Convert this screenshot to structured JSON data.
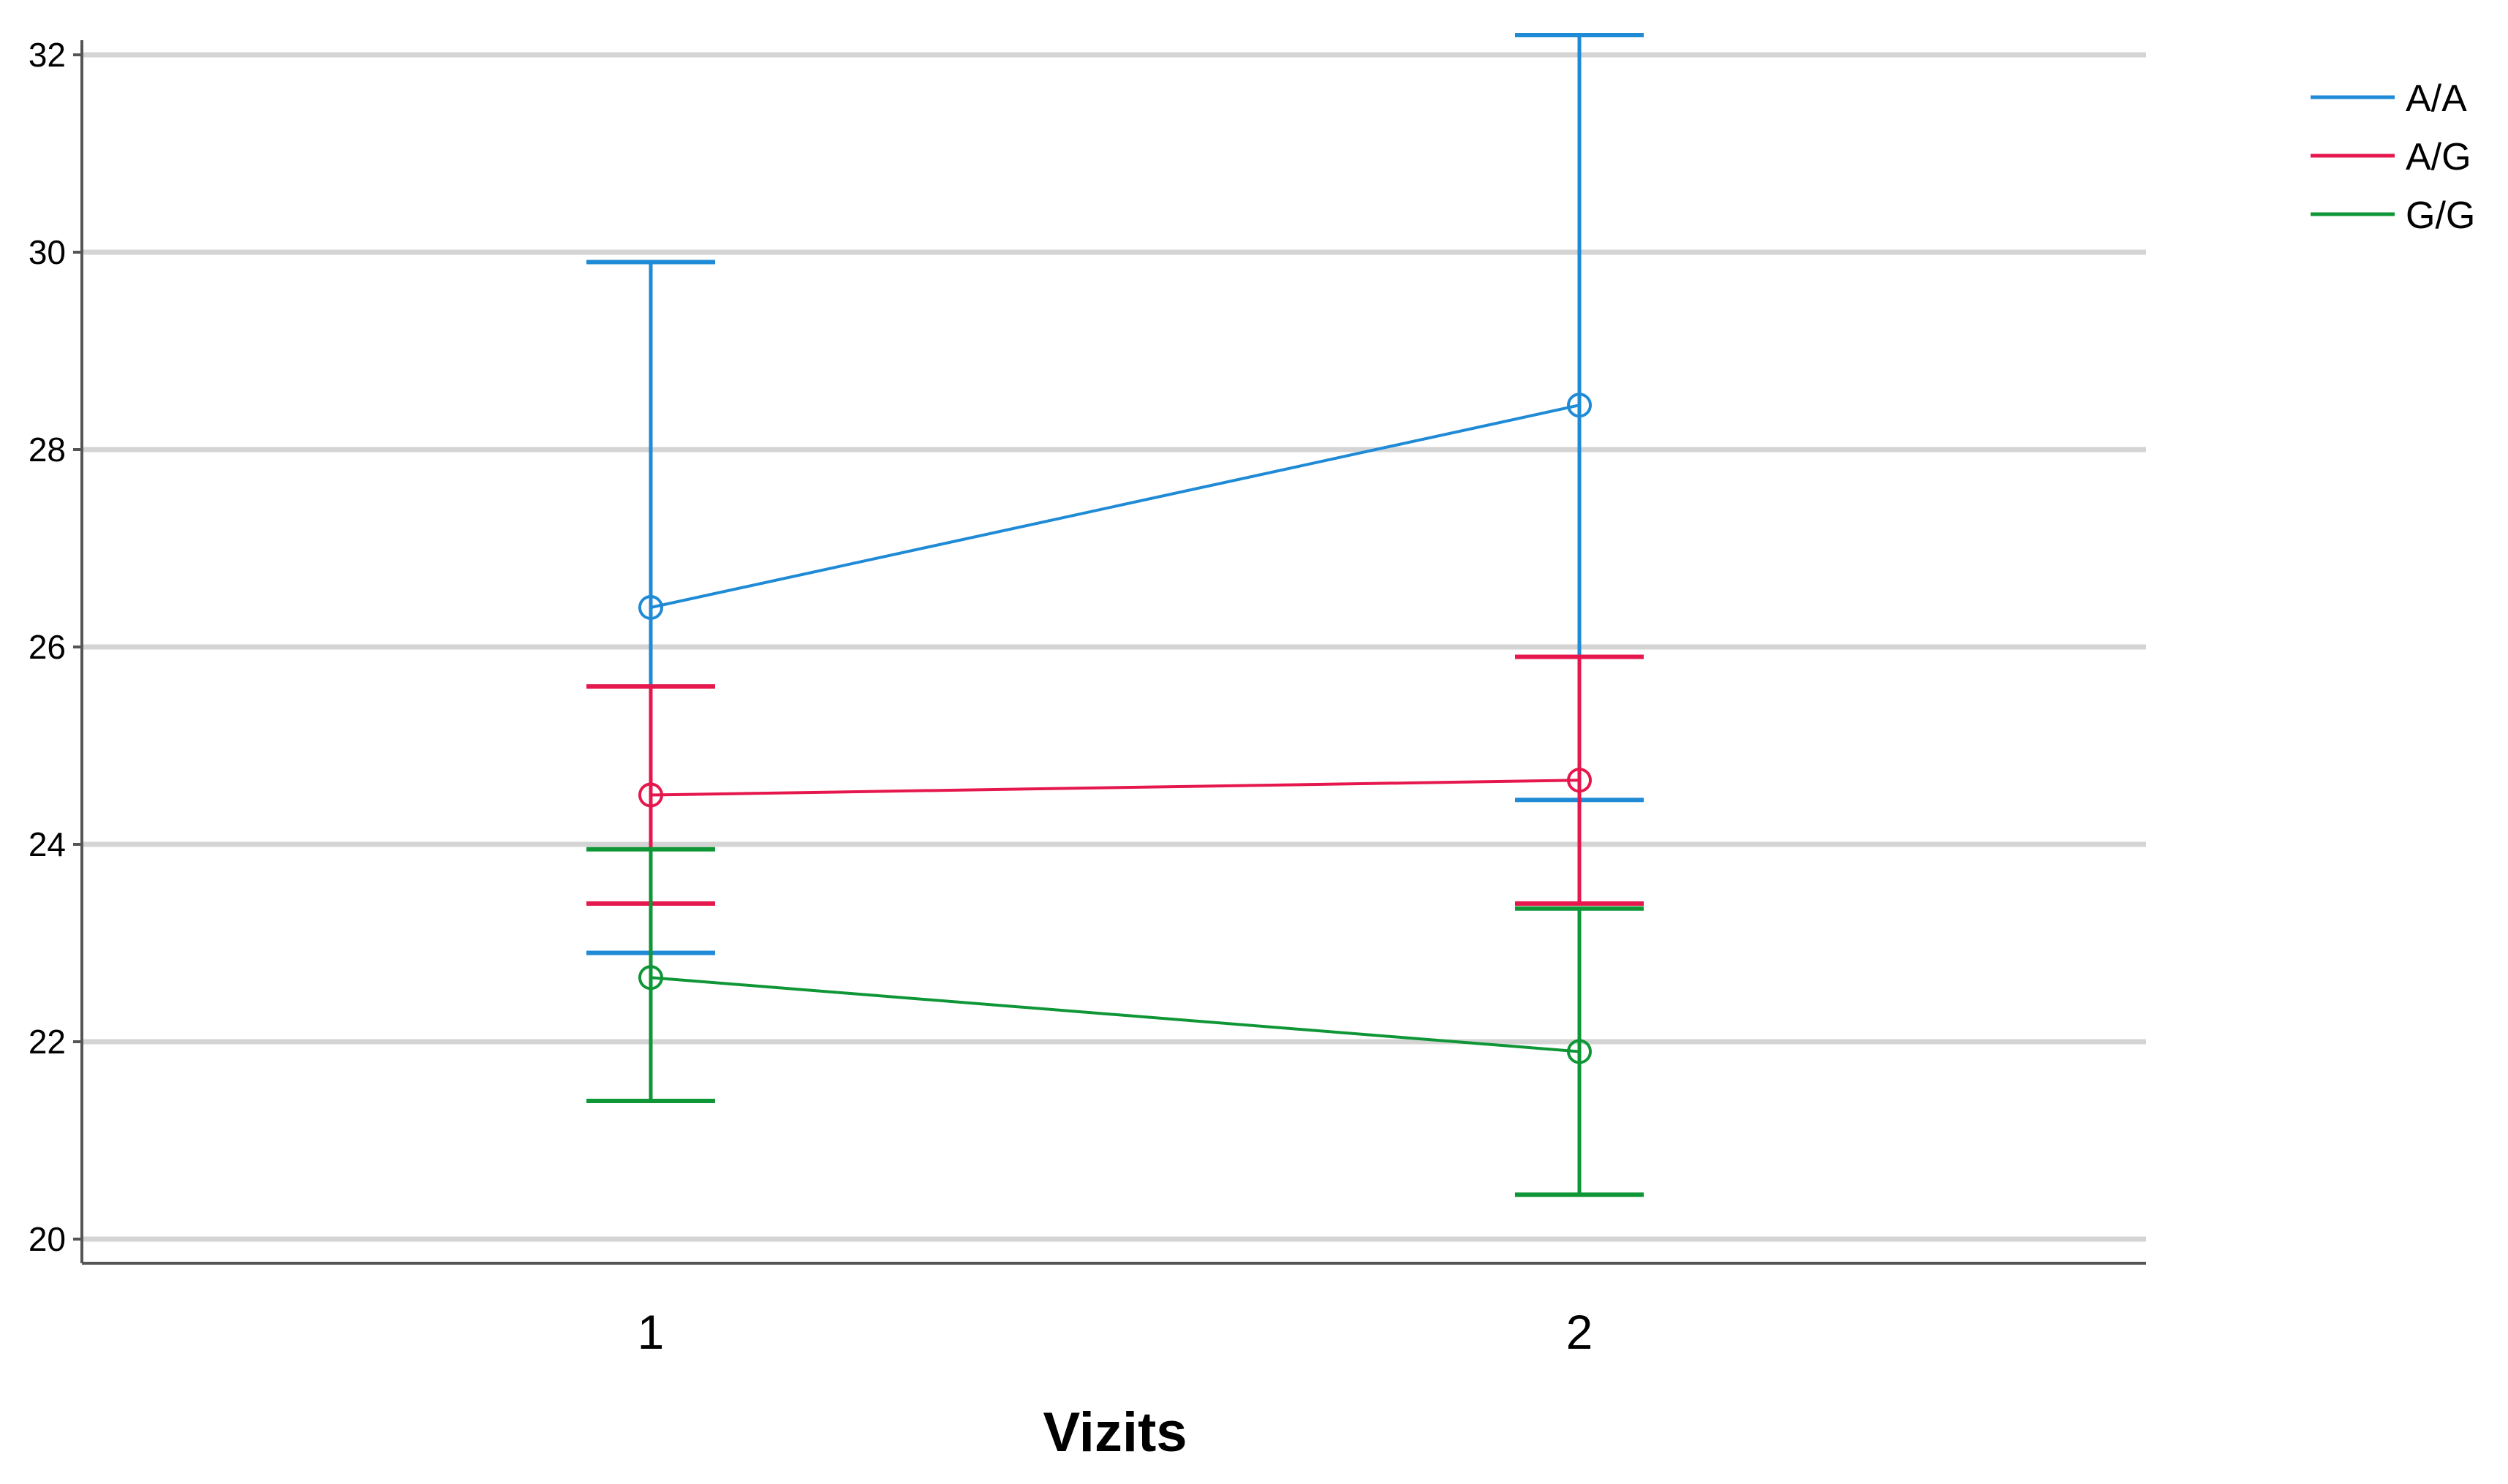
{
  "chart_data": {
    "type": "line",
    "xlabel": "Vizits",
    "ylabel": "",
    "x_categories": [
      "1",
      "2"
    ],
    "ylim": [
      20,
      32.2
    ],
    "yticks": [
      20,
      22,
      24,
      26,
      28,
      30,
      32
    ],
    "grid": true,
    "legend_position": "top-right",
    "error_bars": true,
    "series": [
      {
        "name": "A/A",
        "color": "#1f8ad6",
        "means": [
          26.4,
          28.45
        ],
        "lower": [
          22.9,
          24.45
        ],
        "upper": [
          29.9,
          32.2
        ]
      },
      {
        "name": "A/G",
        "color": "#e5174d",
        "means": [
          24.5,
          24.65
        ],
        "lower": [
          23.4,
          23.4
        ],
        "upper": [
          25.6,
          25.9
        ]
      },
      {
        "name": "G/G",
        "color": "#0f9636",
        "means": [
          22.65,
          21.9
        ],
        "lower": [
          21.4,
          20.45
        ],
        "upper": [
          23.95,
          23.35
        ]
      }
    ]
  }
}
